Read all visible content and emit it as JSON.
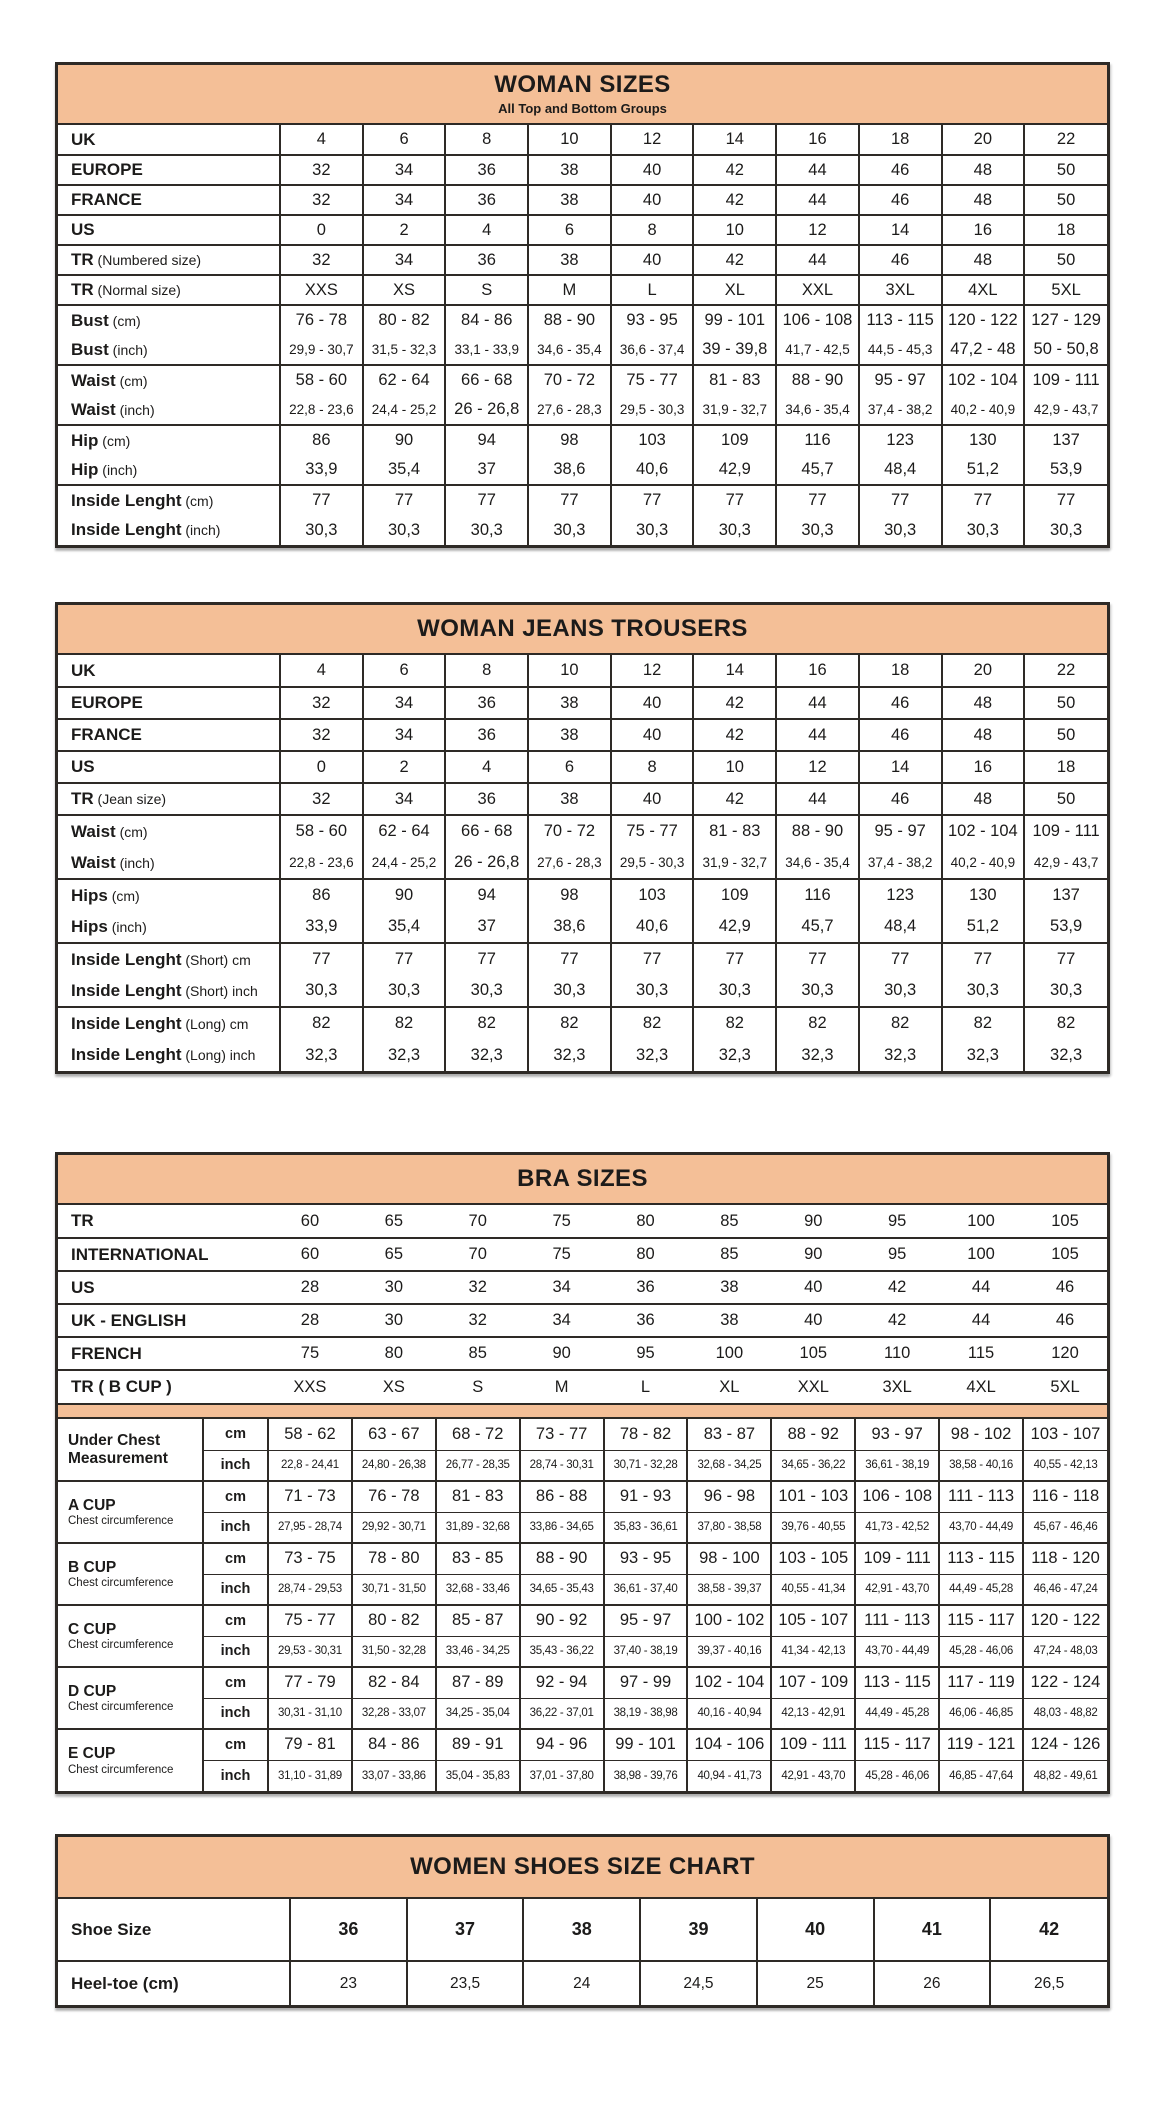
{
  "colors": {
    "header_bg": "#f4bf97",
    "border": "#2e2a26",
    "text": "#1c1b1a"
  },
  "tables": {
    "woman_sizes": {
      "title": "WOMAN SIZES",
      "subtitle": "All Top and Bottom Groups",
      "groups": [
        [
          {
            "label": "UK",
            "note": "",
            "values": [
              "4",
              "6",
              "8",
              "10",
              "12",
              "14",
              "16",
              "18",
              "20",
              "22"
            ]
          }
        ],
        [
          {
            "label": "EUROPE",
            "note": "",
            "values": [
              "32",
              "34",
              "36",
              "38",
              "40",
              "42",
              "44",
              "46",
              "48",
              "50"
            ]
          }
        ],
        [
          {
            "label": "FRANCE",
            "note": "",
            "values": [
              "32",
              "34",
              "36",
              "38",
              "40",
              "42",
              "44",
              "46",
              "48",
              "50"
            ]
          }
        ],
        [
          {
            "label": "US",
            "note": "",
            "values": [
              "0",
              "2",
              "4",
              "6",
              "8",
              "10",
              "12",
              "14",
              "16",
              "18"
            ]
          }
        ],
        [
          {
            "label": "TR",
            "note": "(Numbered size)",
            "values": [
              "32",
              "34",
              "36",
              "38",
              "40",
              "42",
              "44",
              "46",
              "48",
              "50"
            ]
          }
        ],
        [
          {
            "label": "TR",
            "note": "(Normal size)",
            "values": [
              "XXS",
              "XS",
              "S",
              "M",
              "L",
              "XL",
              "XXL",
              "3XL",
              "4XL",
              "5XL"
            ]
          }
        ],
        [
          {
            "label": "Bust",
            "note": "(cm)",
            "values": [
              "76 - 78",
              "80 - 82",
              "84 - 86",
              "88 - 90",
              "93 - 95",
              "99 - 101",
              "106 - 108",
              "113 - 115",
              "120 - 122",
              "127 - 129"
            ]
          },
          {
            "label": "Bust",
            "note": "(inch)",
            "values": [
              "29,9 - 30,7",
              "31,5 - 32,3",
              "33,1 - 33,9",
              "34,6 - 35,4",
              "36,6 - 37,4",
              "39 - 39,8",
              "41,7 - 42,5",
              "44,5 - 45,3",
              "47,2 - 48",
              "50 - 50,8"
            ]
          }
        ],
        [
          {
            "label": "Waist",
            "note": "(cm)",
            "values": [
              "58 - 60",
              "62 - 64",
              "66 - 68",
              "70 - 72",
              "75 - 77",
              "81 - 83",
              "88 - 90",
              "95 - 97",
              "102 - 104",
              "109 - 111"
            ]
          },
          {
            "label": "Waist",
            "note": "(inch)",
            "values": [
              "22,8 - 23,6",
              "24,4 - 25,2",
              "26 - 26,8",
              "27,6 - 28,3",
              "29,5 - 30,3",
              "31,9 - 32,7",
              "34,6 - 35,4",
              "37,4 - 38,2",
              "40,2 - 40,9",
              "42,9 - 43,7"
            ]
          }
        ],
        [
          {
            "label": "Hip",
            "note": "(cm)",
            "values": [
              "86",
              "90",
              "94",
              "98",
              "103",
              "109",
              "116",
              "123",
              "130",
              "137"
            ]
          },
          {
            "label": "Hip",
            "note": "(inch)",
            "values": [
              "33,9",
              "35,4",
              "37",
              "38,6",
              "40,6",
              "42,9",
              "45,7",
              "48,4",
              "51,2",
              "53,9"
            ]
          }
        ],
        [
          {
            "label": "Inside Lenght",
            "note": "(cm)",
            "values": [
              "77",
              "77",
              "77",
              "77",
              "77",
              "77",
              "77",
              "77",
              "77",
              "77"
            ]
          },
          {
            "label": "Inside Lenght",
            "note": "(inch)",
            "values": [
              "30,3",
              "30,3",
              "30,3",
              "30,3",
              "30,3",
              "30,3",
              "30,3",
              "30,3",
              "30,3",
              "30,3"
            ]
          }
        ]
      ]
    },
    "woman_jeans": {
      "title": "WOMAN JEANS TROUSERS",
      "groups": [
        [
          {
            "label": "UK",
            "note": "",
            "values": [
              "4",
              "6",
              "8",
              "10",
              "12",
              "14",
              "16",
              "18",
              "20",
              "22"
            ]
          }
        ],
        [
          {
            "label": "EUROPE",
            "note": "",
            "values": [
              "32",
              "34",
              "36",
              "38",
              "40",
              "42",
              "44",
              "46",
              "48",
              "50"
            ]
          }
        ],
        [
          {
            "label": "FRANCE",
            "note": "",
            "values": [
              "32",
              "34",
              "36",
              "38",
              "40",
              "42",
              "44",
              "46",
              "48",
              "50"
            ]
          }
        ],
        [
          {
            "label": "US",
            "note": "",
            "values": [
              "0",
              "2",
              "4",
              "6",
              "8",
              "10",
              "12",
              "14",
              "16",
              "18"
            ]
          }
        ],
        [
          {
            "label": "TR",
            "note": "(Jean size)",
            "values": [
              "32",
              "34",
              "36",
              "38",
              "40",
              "42",
              "44",
              "46",
              "48",
              "50"
            ]
          }
        ],
        [
          {
            "label": "Waist",
            "note": "(cm)",
            "values": [
              "58 - 60",
              "62 - 64",
              "66 - 68",
              "70 - 72",
              "75 - 77",
              "81 - 83",
              "88 - 90",
              "95 - 97",
              "102 - 104",
              "109 - 111"
            ]
          },
          {
            "label": "Waist",
            "note": "(inch)",
            "values": [
              "22,8 - 23,6",
              "24,4 - 25,2",
              "26 - 26,8",
              "27,6 - 28,3",
              "29,5 - 30,3",
              "31,9 - 32,7",
              "34,6 - 35,4",
              "37,4 - 38,2",
              "40,2 - 40,9",
              "42,9 - 43,7"
            ]
          }
        ],
        [
          {
            "label": "Hips",
            "note": "(cm)",
            "values": [
              "86",
              "90",
              "94",
              "98",
              "103",
              "109",
              "116",
              "123",
              "130",
              "137"
            ]
          },
          {
            "label": "Hips",
            "note": "(inch)",
            "values": [
              "33,9",
              "35,4",
              "37",
              "38,6",
              "40,6",
              "42,9",
              "45,7",
              "48,4",
              "51,2",
              "53,9"
            ]
          }
        ],
        [
          {
            "label": "Inside Lenght",
            "note": "(Short) cm",
            "values": [
              "77",
              "77",
              "77",
              "77",
              "77",
              "77",
              "77",
              "77",
              "77",
              "77"
            ]
          },
          {
            "label": "Inside Lenght",
            "note": "(Short) inch",
            "values": [
              "30,3",
              "30,3",
              "30,3",
              "30,3",
              "30,3",
              "30,3",
              "30,3",
              "30,3",
              "30,3",
              "30,3"
            ]
          }
        ],
        [
          {
            "label": "Inside Lenght",
            "note": "(Long) cm",
            "values": [
              "82",
              "82",
              "82",
              "82",
              "82",
              "82",
              "82",
              "82",
              "82",
              "82"
            ]
          },
          {
            "label": "Inside Lenght",
            "note": "(Long) inch",
            "values": [
              "32,3",
              "32,3",
              "32,3",
              "32,3",
              "32,3",
              "32,3",
              "32,3",
              "32,3",
              "32,3",
              "32,3"
            ]
          }
        ]
      ]
    },
    "bra": {
      "title": "BRA SIZES",
      "conversion_rows": [
        {
          "label": "TR",
          "values": [
            "60",
            "65",
            "70",
            "75",
            "80",
            "85",
            "90",
            "95",
            "100",
            "105"
          ]
        },
        {
          "label": "INTERNATIONAL",
          "values": [
            "60",
            "65",
            "70",
            "75",
            "80",
            "85",
            "90",
            "95",
            "100",
            "105"
          ]
        },
        {
          "label": "US",
          "values": [
            "28",
            "30",
            "32",
            "34",
            "36",
            "38",
            "40",
            "42",
            "44",
            "46"
          ]
        },
        {
          "label": "UK - ENGLISH",
          "values": [
            "28",
            "30",
            "32",
            "34",
            "36",
            "38",
            "40",
            "42",
            "44",
            "46"
          ]
        },
        {
          "label": "FRENCH",
          "values": [
            "75",
            "80",
            "85",
            "90",
            "95",
            "100",
            "105",
            "110",
            "115",
            "120"
          ]
        },
        {
          "label": "TR ( B CUP )",
          "values": [
            "XXS",
            "XS",
            "S",
            "M",
            "L",
            "XL",
            "XXL",
            "3XL",
            "4XL",
            "5XL"
          ]
        }
      ],
      "cup_groups": [
        {
          "label": "Under Chest Measurement",
          "sub": "",
          "rows": [
            {
              "unit": "cm",
              "values": [
                "58 - 62",
                "63 - 67",
                "68 - 72",
                "73 - 77",
                "78 - 82",
                "83 - 87",
                "88 - 92",
                "93 - 97",
                "98 - 102",
                "103 - 107"
              ]
            },
            {
              "unit": "inch",
              "values": [
                "22,8 - 24,41",
                "24,80 - 26,38",
                "26,77 - 28,35",
                "28,74 - 30,31",
                "30,71 - 32,28",
                "32,68 - 34,25",
                "34,65 - 36,22",
                "36,61 - 38,19",
                "38,58 - 40,16",
                "40,55 - 42,13"
              ]
            }
          ]
        },
        {
          "label": "A CUP",
          "sub": "Chest circumference",
          "rows": [
            {
              "unit": "cm",
              "values": [
                "71 - 73",
                "76 - 78",
                "81 - 83",
                "86 - 88",
                "91 - 93",
                "96 - 98",
                "101 - 103",
                "106 - 108",
                "111 - 113",
                "116 - 118"
              ]
            },
            {
              "unit": "inch",
              "values": [
                "27,95 - 28,74",
                "29,92 - 30,71",
                "31,89 - 32,68",
                "33,86 - 34,65",
                "35,83 - 36,61",
                "37,80 - 38,58",
                "39,76 - 40,55",
                "41,73 - 42,52",
                "43,70 - 44,49",
                "45,67 - 46,46"
              ]
            }
          ]
        },
        {
          "label": "B CUP",
          "sub": "Chest circumference",
          "rows": [
            {
              "unit": "cm",
              "values": [
                "73 - 75",
                "78 - 80",
                "83 - 85",
                "88 - 90",
                "93 - 95",
                "98 - 100",
                "103 - 105",
                "109 - 111",
                "113 - 115",
                "118 - 120"
              ]
            },
            {
              "unit": "inch",
              "values": [
                "28,74 - 29,53",
                "30,71 - 31,50",
                "32,68 - 33,46",
                "34,65 - 35,43",
                "36,61 - 37,40",
                "38,58 - 39,37",
                "40,55 - 41,34",
                "42,91 - 43,70",
                "44,49 - 45,28",
                "46,46 - 47,24"
              ]
            }
          ]
        },
        {
          "label": "C CUP",
          "sub": "Chest circumference",
          "rows": [
            {
              "unit": "cm",
              "values": [
                "75 - 77",
                "80 - 82",
                "85 - 87",
                "90 - 92",
                "95 - 97",
                "100 - 102",
                "105 - 107",
                "111 - 113",
                "115 - 117",
                "120 - 122"
              ]
            },
            {
              "unit": "inch",
              "values": [
                "29,53 - 30,31",
                "31,50 - 32,28",
                "33,46 - 34,25",
                "35,43 - 36,22",
                "37,40 - 38,19",
                "39,37 - 40,16",
                "41,34 - 42,13",
                "43,70 - 44,49",
                "45,28 - 46,06",
                "47,24 - 48,03"
              ]
            }
          ]
        },
        {
          "label": "D CUP",
          "sub": "Chest circumference",
          "rows": [
            {
              "unit": "cm",
              "values": [
                "77 - 79",
                "82 - 84",
                "87 - 89",
                "92 - 94",
                "97 - 99",
                "102 - 104",
                "107 - 109",
                "113 - 115",
                "117 - 119",
                "122 - 124"
              ]
            },
            {
              "unit": "inch",
              "values": [
                "30,31 - 31,10",
                "32,28 - 33,07",
                "34,25 - 35,04",
                "36,22 - 37,01",
                "38,19 - 38,98",
                "40,16 - 40,94",
                "42,13 - 42,91",
                "44,49 - 45,28",
                "46,06 - 46,85",
                "48,03 - 48,82"
              ]
            }
          ]
        },
        {
          "label": "E CUP",
          "sub": "Chest circumference",
          "rows": [
            {
              "unit": "cm",
              "values": [
                "79 - 81",
                "84 - 86",
                "89 - 91",
                "94 - 96",
                "99 - 101",
                "104 - 106",
                "109 - 111",
                "115 - 117",
                "119 - 121",
                "124 - 126"
              ]
            },
            {
              "unit": "inch",
              "values": [
                "31,10 - 31,89",
                "33,07 - 33,86",
                "35,04 - 35,83",
                "37,01 - 37,80",
                "38,98 - 39,76",
                "40,94 - 41,73",
                "42,91 - 43,70",
                "45,28 - 46,06",
                "46,85 - 47,64",
                "48,82 - 49,61"
              ]
            }
          ]
        }
      ]
    },
    "shoes": {
      "title": "WOMEN SHOES SIZE CHART",
      "rows": [
        {
          "label": "Shoe Size",
          "values": [
            "36",
            "37",
            "38",
            "39",
            "40",
            "41",
            "42"
          ]
        },
        {
          "label": "Heel-toe (cm)",
          "values": [
            "23",
            "23,5",
            "24",
            "24,5",
            "25",
            "26",
            "26,5"
          ]
        }
      ]
    }
  }
}
